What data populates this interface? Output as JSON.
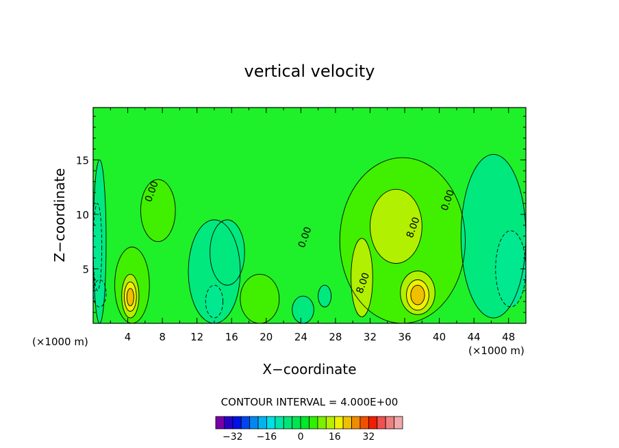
{
  "chart_data": {
    "type": "heatmap",
    "title": "vertical velocity",
    "xlabel": "X−coordinate",
    "ylabel": "Z−coordinate",
    "x_unit_left": "(×1000 m)",
    "x_unit_right": "(×1000 m)",
    "xlim": [
      0,
      50
    ],
    "ylim": [
      0,
      19.8
    ],
    "x_ticks": [
      4,
      8,
      12,
      16,
      20,
      24,
      28,
      32,
      36,
      40,
      44,
      48
    ],
    "y_ticks": [
      5,
      10,
      15
    ],
    "contour_labels": [
      {
        "text": "0.00",
        "x": 7.1,
        "y": 12.0
      },
      {
        "text": "0.00",
        "x": 24.8,
        "y": 7.8
      },
      {
        "text": "8.00",
        "x": 31.5,
        "y": 3.6
      },
      {
        "text": "8.00",
        "x": 37.3,
        "y": 8.7
      },
      {
        "text": "0.00",
        "x": 41.3,
        "y": 11.2
      }
    ],
    "cells": [
      {
        "x0": 0.0,
        "x1": 1.5,
        "y0": 0.0,
        "y1": 15.0,
        "value": 2
      },
      {
        "x0": 0.0,
        "x1": 1.0,
        "y0": 3.0,
        "y1": 11.0,
        "value": -2
      },
      {
        "x0": 0.0,
        "x1": 1.5,
        "y0": 1.5,
        "y1": 4.0,
        "value": -2
      },
      {
        "x0": 2.5,
        "x1": 6.5,
        "y0": 0.0,
        "y1": 7.0,
        "value": 4
      },
      {
        "x0": 3.3,
        "x1": 5.3,
        "y0": 0.5,
        "y1": 4.5,
        "value": 8
      },
      {
        "x0": 3.6,
        "x1": 5.0,
        "y0": 1.1,
        "y1": 3.8,
        "value": 12
      },
      {
        "x0": 3.9,
        "x1": 4.7,
        "y0": 1.6,
        "y1": 3.2,
        "value": 16
      },
      {
        "x0": 5.5,
        "x1": 9.5,
        "y0": 7.5,
        "y1": 13.2,
        "value": 4
      },
      {
        "x0": 11.0,
        "x1": 17.0,
        "y0": 0.0,
        "y1": 9.5,
        "value": 2
      },
      {
        "x0": 13.5,
        "x1": 17.5,
        "y0": 3.5,
        "y1": 9.5,
        "value": 2
      },
      {
        "x0": 13.0,
        "x1": 15.0,
        "y0": 0.5,
        "y1": 3.5,
        "value": -2
      },
      {
        "x0": 17.0,
        "x1": 21.5,
        "y0": 0.0,
        "y1": 4.5,
        "value": 4
      },
      {
        "x0": 23.0,
        "x1": 25.5,
        "y0": 0.0,
        "y1": 2.5,
        "value": 2
      },
      {
        "x0": 26.0,
        "x1": 27.5,
        "y0": 1.5,
        "y1": 3.5,
        "value": 2
      },
      {
        "x0": 28.5,
        "x1": 43.0,
        "y0": 0.0,
        "y1": 15.2,
        "value": 4
      },
      {
        "x0": 32.0,
        "x1": 38.0,
        "y0": 5.5,
        "y1": 12.3,
        "value": 8
      },
      {
        "x0": 29.8,
        "x1": 32.3,
        "y0": 0.6,
        "y1": 7.8,
        "value": 8
      },
      {
        "x0": 35.5,
        "x1": 39.5,
        "y0": 0.8,
        "y1": 4.8,
        "value": 8
      },
      {
        "x0": 36.2,
        "x1": 38.8,
        "y0": 1.2,
        "y1": 4.0,
        "value": 12
      },
      {
        "x0": 36.7,
        "x1": 38.3,
        "y0": 1.7,
        "y1": 3.5,
        "value": 16
      },
      {
        "x0": 42.5,
        "x1": 50.0,
        "y0": 0.5,
        "y1": 15.5,
        "value": 2
      },
      {
        "x0": 46.5,
        "x1": 50.0,
        "y0": 1.5,
        "y1": 8.5,
        "value": -2
      }
    ]
  },
  "contour_interval_text": "CONTOUR INTERVAL =  4.000E+00",
  "colorbar": {
    "tick_labels": [
      "−32",
      "−16",
      "0",
      "16",
      "32"
    ],
    "tick_values": [
      -32,
      -16,
      0,
      16,
      32
    ],
    "colors": [
      "#7a00a6",
      "#2a00c8",
      "#0010e6",
      "#0046f0",
      "#0088f0",
      "#00b4f0",
      "#00e0e6",
      "#00e6a8",
      "#00e676",
      "#00e650",
      "#00e82a",
      "#30f000",
      "#7cf000",
      "#b8f000",
      "#f0f000",
      "#f0c000",
      "#f08c00",
      "#f05000",
      "#f01e00",
      "#f05050",
      "#f08080",
      "#f0a8a8"
    ],
    "value_range": [
      -40,
      48
    ]
  },
  "palette": {
    "-4": "#00e6a0",
    "-2": "#00e890",
    "0": "#1ef02a",
    "2": "#00e87e",
    "4": "#40f000",
    "8": "#b0f000",
    "12": "#f0f000",
    "16": "#f0c000"
  }
}
